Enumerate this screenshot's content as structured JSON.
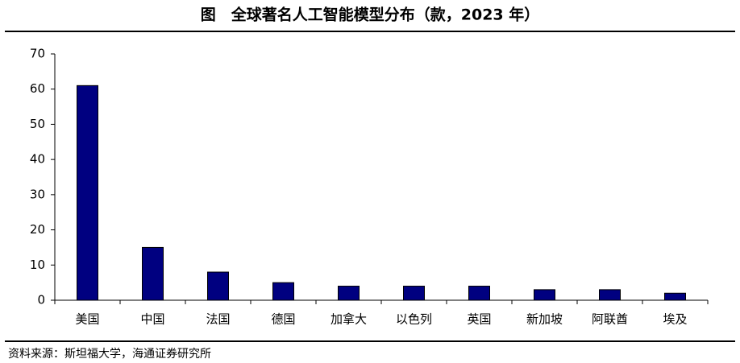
{
  "chart_data": {
    "type": "bar",
    "title": "图　全球著名人工智能模型分布（款，2023 年）",
    "categories": [
      "美国",
      "中国",
      "法国",
      "德国",
      "加拿大",
      "以色列",
      "英国",
      "新加坡",
      "阿联酋",
      "埃及"
    ],
    "values": [
      61,
      15,
      8,
      5,
      4,
      4,
      4,
      3,
      3,
      2
    ],
    "color": "#000080",
    "ylim": [
      0,
      70
    ],
    "yticks": [
      0,
      10,
      20,
      30,
      40,
      50,
      60,
      70
    ],
    "source": "资料来源：斯坦福大学，海通证券研究所"
  }
}
